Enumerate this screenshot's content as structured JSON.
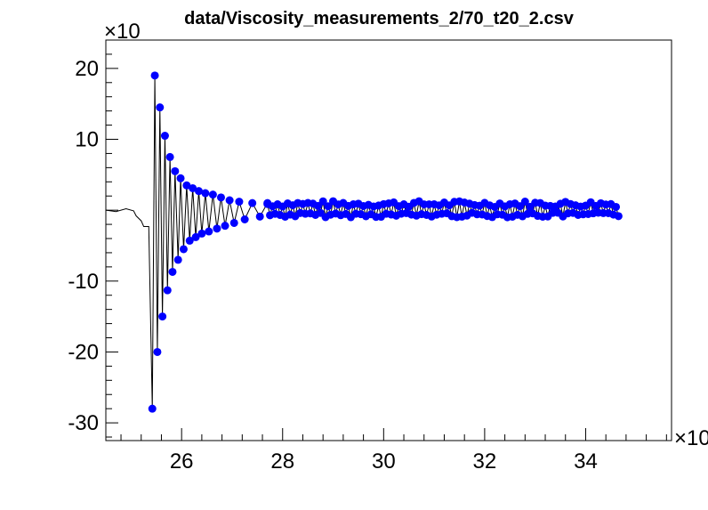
{
  "chart_data": {
    "type": "scatter",
    "title": "data/Viscosity_measurements_2/70_t20_2.csv",
    "xlabel": "",
    "ylabel": "",
    "x_exponent_label": "×10",
    "y_exponent_label": "×10",
    "xlim": [
      24.5,
      35.7
    ],
    "ylim": [
      -32.5,
      24
    ],
    "x_ticks": [
      26,
      28,
      30,
      32,
      34
    ],
    "x_tick_labels": [
      "26",
      "28",
      "30",
      "32",
      "34"
    ],
    "y_ticks": [
      -30,
      -20,
      -10,
      0,
      10,
      20
    ],
    "y_tick_labels": [
      "-30",
      "-20",
      "-10",
      "",
      "10",
      "20"
    ],
    "grid": false,
    "line_color": "#000000",
    "marker_color": "#0000ff",
    "series": [
      {
        "kind": "line",
        "x": [
          24.5,
          24.7,
          24.9,
          25.05,
          25.1,
          25.2,
          25.25,
          25.35,
          25.42,
          25.47,
          25.52,
          25.57,
          25.62,
          25.67,
          25.72,
          25.77,
          25.82,
          25.87,
          25.93,
          25.98,
          26.04,
          26.1,
          26.16,
          26.22,
          26.28,
          26.34,
          26.4,
          26.47,
          26.54,
          26.62,
          26.7,
          26.78,
          26.86,
          26.95,
          27.04,
          27.14,
          27.25,
          27.4,
          27.55,
          27.7
        ],
        "y": [
          0,
          -0.2,
          0.2,
          -0.1,
          -0.8,
          -1.5,
          -2.3,
          -2.3,
          -28,
          19,
          -20,
          14.5,
          -15,
          10.5,
          -11.3,
          7.5,
          -8.7,
          5.5,
          -7,
          4.5,
          -5.5,
          3.5,
          -4.3,
          3.1,
          -3.8,
          2.7,
          -3.3,
          2.4,
          -3,
          2.2,
          -2.6,
          1.8,
          -2.2,
          1.4,
          -1.8,
          1.2,
          -1.3,
          1.0,
          -0.9,
          1.0
        ]
      },
      {
        "kind": "markers",
        "x": [
          25.42,
          25.47,
          25.52,
          25.57,
          25.62,
          25.67,
          25.72,
          25.77,
          25.82,
          25.87,
          25.93,
          25.98,
          26.04,
          26.1,
          26.16,
          26.22,
          26.28,
          26.34,
          26.4,
          26.47,
          26.54,
          26.62,
          26.7,
          26.78,
          26.86,
          26.95,
          27.04,
          27.14,
          27.25,
          27.4,
          27.55,
          27.7
        ],
        "y": [
          -28,
          19,
          -20,
          14.5,
          -15,
          10.5,
          -11.3,
          7.5,
          -8.7,
          5.5,
          -7,
          4.5,
          -5.5,
          3.5,
          -4.3,
          3.1,
          -3.8,
          2.7,
          -3.3,
          2.4,
          -3,
          2.2,
          -2.6,
          1.8,
          -2.2,
          1.4,
          -1.8,
          1.2,
          -1.3,
          1.0,
          -0.9,
          1.0
        ]
      }
    ],
    "noise_band": {
      "x_start": 27.7,
      "x_end": 34.65,
      "y_min": -1.0,
      "y_max": 1.3
    }
  }
}
